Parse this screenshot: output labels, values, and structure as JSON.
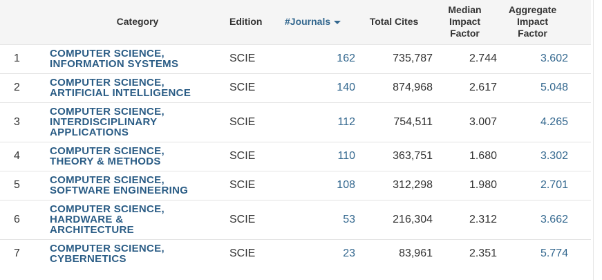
{
  "headers": {
    "category": "Category",
    "edition": "Edition",
    "journals": "#Journals",
    "total_cites": "Total Cites",
    "median_if_1": "Median",
    "median_if_2": "Impact",
    "median_if_3": "Factor",
    "aggregate_if_1": "Aggregate",
    "aggregate_if_2": "Impact",
    "aggregate_if_3": "Factor"
  },
  "rows": [
    {
      "rank": "1",
      "category_line1": "COMPUTER SCIENCE,",
      "category_line2": "INFORMATION SYSTEMS",
      "category_line3": "",
      "edition": "SCIE",
      "journals": "162",
      "total_cites": "735,787",
      "median_if": "2.744",
      "aggregate_if": "3.602"
    },
    {
      "rank": "2",
      "category_line1": "COMPUTER SCIENCE,",
      "category_line2": "ARTIFICIAL INTELLIGENCE",
      "category_line3": "",
      "edition": "SCIE",
      "journals": "140",
      "total_cites": "874,968",
      "median_if": "2.617",
      "aggregate_if": "5.048"
    },
    {
      "rank": "3",
      "category_line1": "COMPUTER SCIENCE,",
      "category_line2": "INTERDISCIPLINARY",
      "category_line3": "APPLICATIONS",
      "edition": "SCIE",
      "journals": "112",
      "total_cites": "754,511",
      "median_if": "3.007",
      "aggregate_if": "4.265"
    },
    {
      "rank": "4",
      "category_line1": "COMPUTER SCIENCE,",
      "category_line2": "THEORY & METHODS",
      "category_line3": "",
      "edition": "SCIE",
      "journals": "110",
      "total_cites": "363,751",
      "median_if": "1.680",
      "aggregate_if": "3.302"
    },
    {
      "rank": "5",
      "category_line1": "COMPUTER SCIENCE,",
      "category_line2": "SOFTWARE ENGINEERING",
      "category_line3": "",
      "edition": "SCIE",
      "journals": "108",
      "total_cites": "312,298",
      "median_if": "1.980",
      "aggregate_if": "2.701"
    },
    {
      "rank": "6",
      "category_line1": "COMPUTER SCIENCE,",
      "category_line2": "HARDWARE &",
      "category_line3": "ARCHITECTURE",
      "edition": "SCIE",
      "journals": "53",
      "total_cites": "216,304",
      "median_if": "2.312",
      "aggregate_if": "3.662"
    },
    {
      "rank": "7",
      "category_line1": "COMPUTER SCIENCE,",
      "category_line2": "CYBERNETICS",
      "category_line3": "",
      "edition": "SCIE",
      "journals": "23",
      "total_cites": "83,961",
      "median_if": "2.351",
      "aggregate_if": "5.774"
    }
  ],
  "colors": {
    "link": "#34688f",
    "category": "#2a5c85",
    "header_bg": "#f5f5f5",
    "text": "#333333"
  },
  "sort": {
    "column": "journals",
    "direction": "desc",
    "icon": "caret-down-icon"
  }
}
